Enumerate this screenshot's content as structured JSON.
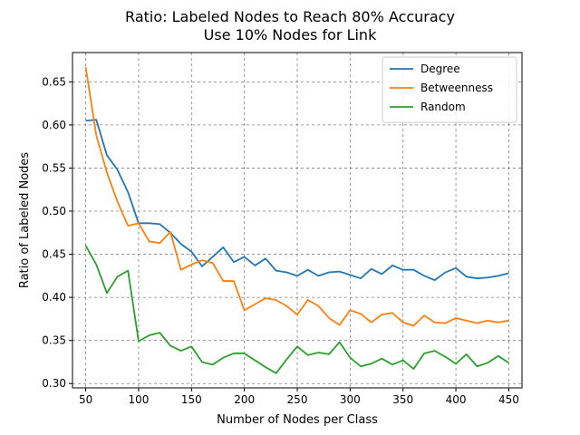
{
  "chart_data": {
    "type": "line",
    "title": "Ratio: Labeled Nodes to Reach 80% Accuracy",
    "subtitle": "Use 10% Nodes for Link",
    "xlabel": "Number of Nodes per Class",
    "ylabel": "Ratio of Labeled Nodes",
    "xlim": [
      37.5,
      462.5
    ],
    "ylim": [
      0.295,
      0.684
    ],
    "xticks": [
      50,
      100,
      150,
      200,
      250,
      300,
      350,
      400,
      450
    ],
    "xtick_labels": [
      "50",
      "100",
      "150",
      "200",
      "250",
      "300",
      "350",
      "400",
      "450"
    ],
    "yticks": [
      0.3,
      0.35,
      0.4,
      0.45,
      0.5,
      0.55,
      0.6,
      0.65
    ],
    "ytick_labels": [
      "0.30",
      "0.35",
      "0.40",
      "0.45",
      "0.50",
      "0.55",
      "0.60",
      "0.65"
    ],
    "grid": true,
    "legend_position": "top-right",
    "x": [
      50,
      60,
      70,
      80,
      90,
      100,
      110,
      120,
      130,
      140,
      150,
      160,
      170,
      180,
      190,
      200,
      210,
      220,
      230,
      240,
      250,
      260,
      270,
      280,
      290,
      300,
      310,
      320,
      330,
      340,
      350,
      360,
      370,
      380,
      390,
      400,
      410,
      420,
      430,
      440,
      450
    ],
    "series": [
      {
        "name": "Degree",
        "color": "#1f77b4",
        "values": [
          0.605,
          0.606,
          0.565,
          0.548,
          0.522,
          0.486,
          0.486,
          0.485,
          0.475,
          0.462,
          0.453,
          0.436,
          0.447,
          0.458,
          0.441,
          0.447,
          0.437,
          0.445,
          0.431,
          0.429,
          0.425,
          0.432,
          0.425,
          0.429,
          0.43,
          0.426,
          0.422,
          0.433,
          0.427,
          0.437,
          0.432,
          0.432,
          0.425,
          0.42,
          0.429,
          0.434,
          0.424,
          0.422,
          0.423,
          0.425,
          0.428
        ]
      },
      {
        "name": "Betweenness",
        "color": "#ff7f0e",
        "values": [
          0.667,
          0.588,
          0.545,
          0.511,
          0.483,
          0.486,
          0.465,
          0.463,
          0.476,
          0.432,
          0.438,
          0.443,
          0.44,
          0.419,
          0.419,
          0.385,
          0.392,
          0.399,
          0.397,
          0.39,
          0.38,
          0.397,
          0.39,
          0.376,
          0.368,
          0.385,
          0.381,
          0.371,
          0.38,
          0.382,
          0.371,
          0.367,
          0.379,
          0.371,
          0.37,
          0.376,
          0.373,
          0.37,
          0.373,
          0.371,
          0.373
        ]
      },
      {
        "name": "Random",
        "color": "#2ca02c",
        "values": [
          0.46,
          0.438,
          0.405,
          0.424,
          0.431,
          0.349,
          0.356,
          0.359,
          0.344,
          0.338,
          0.343,
          0.325,
          0.322,
          0.33,
          0.335,
          0.335,
          0.327,
          0.319,
          0.312,
          0.328,
          0.343,
          0.333,
          0.336,
          0.334,
          0.348,
          0.33,
          0.32,
          0.323,
          0.329,
          0.322,
          0.327,
          0.317,
          0.335,
          0.338,
          0.331,
          0.323,
          0.334,
          0.32,
          0.324,
          0.332,
          0.324
        ]
      }
    ]
  }
}
